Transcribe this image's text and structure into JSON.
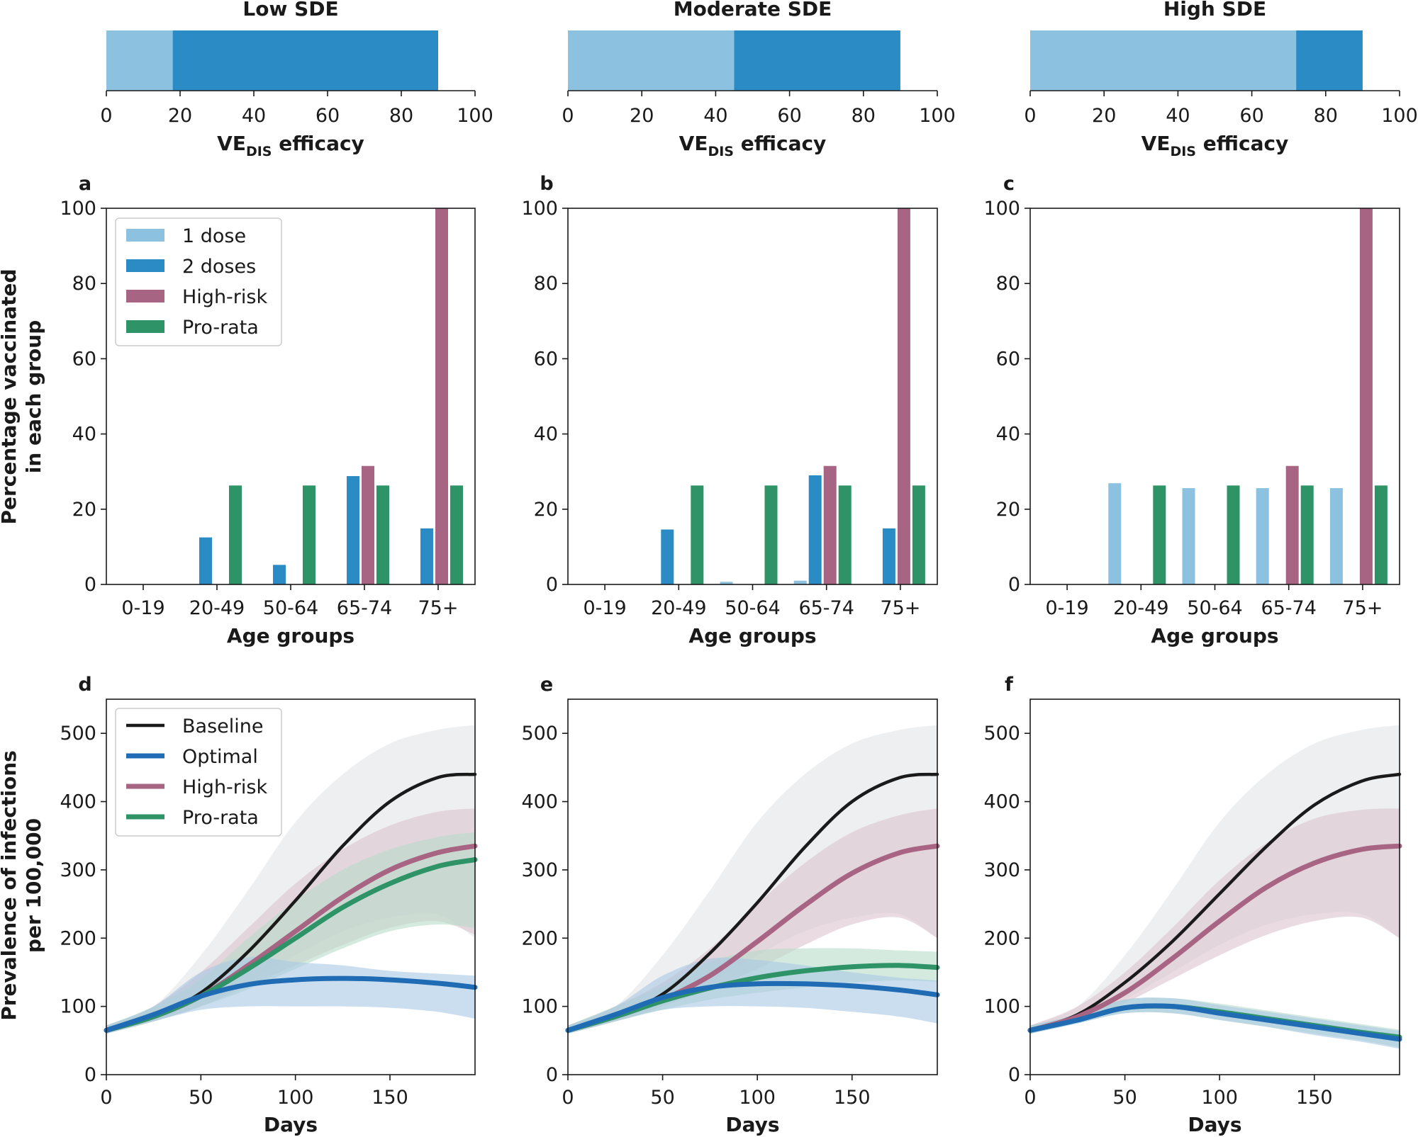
{
  "chart_data": {
    "colors": {
      "dose1": "#8cc2df",
      "dose2": "#2b8bc4",
      "highrisk": "#a86483",
      "prorata": "#2e9366",
      "baseline": "#1a1a1a",
      "optimal": "#1f6cb4",
      "baseline_band": "#e3e4e6",
      "optimal_band": "#a9c8e4",
      "highrisk_band": "#dcc3ce",
      "prorata_band": "#b8dcca"
    },
    "efficacy": {
      "xlabel_main": "VE",
      "xlabel_sub": "DIS",
      "xlabel_rest": " efficacy",
      "xlim": [
        0,
        100
      ],
      "ticks": [
        "0",
        "20",
        "40",
        "60",
        "80",
        "100"
      ],
      "panels": [
        {
          "title": "Low SDE",
          "one_dose": 18,
          "two_doses": 90
        },
        {
          "title": "Moderate SDE",
          "one_dose": 45,
          "two_doses": 90
        },
        {
          "title": "High SDE",
          "one_dose": 72,
          "two_doses": 90
        }
      ]
    },
    "bars": {
      "type": "bar",
      "ylabel_line1": "Percentage vaccinated",
      "ylabel_line2": "in each group",
      "xlabel": "Age groups",
      "categories": [
        "0-19",
        "20-49",
        "50-64",
        "65-74",
        "75+"
      ],
      "ylim": [
        0,
        100
      ],
      "yticks": [
        "0",
        "20",
        "40",
        "60",
        "80",
        "100"
      ],
      "legend": [
        "1 dose",
        "2 doses",
        "High-risk",
        "Pro-rata"
      ],
      "panels": [
        {
          "label": "a",
          "series": [
            {
              "name": "1 dose",
              "values": [
                0,
                0,
                0,
                0,
                0
              ]
            },
            {
              "name": "2 doses",
              "values": [
                0,
                12.5,
                5.2,
                28.8,
                14.9
              ]
            },
            {
              "name": "High-risk",
              "values": [
                0,
                0,
                0,
                31.5,
                100
              ]
            },
            {
              "name": "Pro-rata",
              "values": [
                0,
                26.3,
                26.3,
                26.3,
                26.3
              ]
            }
          ]
        },
        {
          "label": "b",
          "series": [
            {
              "name": "1 dose",
              "values": [
                0,
                0,
                0.7,
                1.0,
                0
              ]
            },
            {
              "name": "2 doses",
              "values": [
                0,
                14.6,
                0,
                29.0,
                14.9
              ]
            },
            {
              "name": "High-risk",
              "values": [
                0,
                0,
                0,
                31.5,
                100
              ]
            },
            {
              "name": "Pro-rata",
              "values": [
                0,
                26.3,
                26.3,
                26.3,
                26.3
              ]
            }
          ]
        },
        {
          "label": "c",
          "series": [
            {
              "name": "1 dose",
              "values": [
                0,
                26.9,
                25.6,
                25.6,
                25.6
              ]
            },
            {
              "name": "2 doses",
              "values": [
                0,
                0,
                0,
                0,
                0
              ]
            },
            {
              "name": "High-risk",
              "values": [
                0,
                0,
                0,
                31.5,
                100
              ]
            },
            {
              "name": "Pro-rata",
              "values": [
                0,
                26.3,
                26.3,
                26.3,
                26.3
              ]
            }
          ]
        }
      ]
    },
    "lines": {
      "type": "line",
      "ylabel_line1": "Prevalence of infections",
      "ylabel_line2": "per 100,000",
      "xlabel": "Days",
      "xlim": [
        0,
        195
      ],
      "ylim": [
        0,
        550
      ],
      "xticks": [
        "0",
        "50",
        "100",
        "150"
      ],
      "yticks": [
        "0",
        "100",
        "200",
        "300",
        "400",
        "500"
      ],
      "legend": [
        "Baseline",
        "Optimal",
        "High-risk",
        "Pro-rata"
      ],
      "panels": [
        {
          "label": "d",
          "series": [
            {
              "name": "Baseline",
              "x": [
                0,
                25,
                50,
                75,
                100,
                125,
                150,
                175,
                195
              ],
              "values": [
                65,
                85,
                120,
                180,
                255,
                335,
                400,
                435,
                440
              ],
              "lower": [
                60,
                78,
                100,
                135,
                175,
                210,
                230,
                235,
                200
              ],
              "upper": [
                72,
                100,
                175,
                270,
                370,
                440,
                485,
                505,
                512
              ]
            },
            {
              "name": "Optimal",
              "x": [
                0,
                25,
                50,
                75,
                100,
                125,
                150,
                175,
                195
              ],
              "values": [
                65,
                88,
                115,
                132,
                139,
                141,
                139,
                134,
                128
              ],
              "lower": [
                60,
                78,
                95,
                100,
                100,
                100,
                98,
                92,
                82
              ],
              "upper": [
                72,
                100,
                150,
                172,
                165,
                160,
                152,
                148,
                145
              ]
            },
            {
              "name": "High-risk",
              "x": [
                0,
                25,
                50,
                75,
                100,
                125,
                150,
                175,
                195
              ],
              "values": [
                65,
                85,
                115,
                160,
                210,
                260,
                300,
                325,
                335
              ],
              "lower": [
                60,
                78,
                100,
                130,
                160,
                190,
                215,
                225,
                205
              ],
              "upper": [
                72,
                100,
                150,
                215,
                280,
                330,
                365,
                385,
                390
              ]
            },
            {
              "name": "Pro-rata",
              "x": [
                0,
                25,
                50,
                75,
                100,
                125,
                150,
                175,
                195
              ],
              "values": [
                65,
                85,
                115,
                155,
                200,
                245,
                280,
                305,
                315
              ],
              "lower": [
                60,
                78,
                100,
                125,
                155,
                185,
                210,
                220,
                215
              ],
              "upper": [
                72,
                100,
                140,
                200,
                255,
                300,
                330,
                348,
                355
              ]
            }
          ]
        },
        {
          "label": "e",
          "series": [
            {
              "name": "Baseline",
              "x": [
                0,
                25,
                50,
                75,
                100,
                125,
                150,
                175,
                195
              ],
              "values": [
                65,
                85,
                118,
                178,
                252,
                333,
                400,
                435,
                440
              ],
              "lower": [
                60,
                78,
                100,
                135,
                175,
                210,
                230,
                235,
                200
              ],
              "upper": [
                72,
                100,
                175,
                270,
                370,
                440,
                485,
                505,
                512
              ]
            },
            {
              "name": "Optimal",
              "x": [
                0,
                25,
                50,
                75,
                100,
                125,
                150,
                175,
                195
              ],
              "values": [
                65,
                88,
                113,
                128,
                133,
                133,
                130,
                124,
                117
              ],
              "lower": [
                60,
                78,
                95,
                100,
                100,
                98,
                92,
                85,
                75
              ],
              "upper": [
                72,
                100,
                145,
                170,
                168,
                160,
                150,
                142,
                138
              ]
            },
            {
              "name": "High-risk",
              "x": [
                0,
                25,
                50,
                75,
                100,
                125,
                150,
                175,
                195
              ],
              "values": [
                65,
                85,
                110,
                145,
                195,
                248,
                295,
                325,
                335
              ],
              "lower": [
                60,
                78,
                100,
                125,
                155,
                190,
                220,
                230,
                200
              ],
              "upper": [
                72,
                100,
                135,
                185,
                250,
                310,
                355,
                380,
                390
              ]
            },
            {
              "name": "Pro-rata",
              "x": [
                0,
                25,
                50,
                75,
                100,
                125,
                150,
                175,
                195
              ],
              "values": [
                65,
                85,
                108,
                127,
                142,
                152,
                158,
                160,
                157
              ],
              "lower": [
                60,
                78,
                95,
                110,
                120,
                128,
                135,
                138,
                136
              ],
              "upper": [
                72,
                100,
                130,
                165,
                182,
                185,
                185,
                182,
                180
              ]
            }
          ]
        },
        {
          "label": "f",
          "series": [
            {
              "name": "Baseline",
              "x": [
                0,
                25,
                50,
                75,
                100,
                125,
                150,
                175,
                195
              ],
              "values": [
                65,
                88,
                135,
                195,
                265,
                335,
                395,
                430,
                440
              ],
              "lower": [
                60,
                78,
                110,
                150,
                190,
                220,
                235,
                235,
                200
              ],
              "upper": [
                72,
                100,
                175,
                270,
                370,
                440,
                485,
                505,
                512
              ]
            },
            {
              "name": "Optimal",
              "x": [
                0,
                25,
                50,
                75,
                100,
                125,
                150,
                175,
                195
              ],
              "values": [
                65,
                80,
                98,
                100,
                90,
                80,
                70,
                60,
                52
              ],
              "lower": [
                60,
                75,
                90,
                90,
                80,
                70,
                58,
                48,
                38
              ],
              "upper": [
                72,
                88,
                110,
                112,
                102,
                92,
                82,
                72,
                64
              ]
            },
            {
              "name": "High-risk",
              "x": [
                0,
                25,
                50,
                75,
                100,
                125,
                150,
                175,
                195
              ],
              "values": [
                65,
                85,
                120,
                170,
                225,
                275,
                310,
                330,
                335
              ],
              "lower": [
                60,
                78,
                105,
                140,
                175,
                205,
                225,
                230,
                200
              ],
              "upper": [
                72,
                100,
                150,
                215,
                285,
                340,
                375,
                388,
                390
              ]
            },
            {
              "name": "Pro-rata",
              "x": [
                0,
                25,
                50,
                75,
                100,
                125,
                150,
                175,
                195
              ],
              "values": [
                65,
                80,
                98,
                100,
                92,
                82,
                72,
                62,
                55
              ],
              "lower": [
                60,
                75,
                90,
                90,
                80,
                70,
                60,
                50,
                40
              ],
              "upper": [
                72,
                88,
                110,
                112,
                104,
                94,
                84,
                74,
                66
              ]
            }
          ]
        }
      ]
    }
  }
}
